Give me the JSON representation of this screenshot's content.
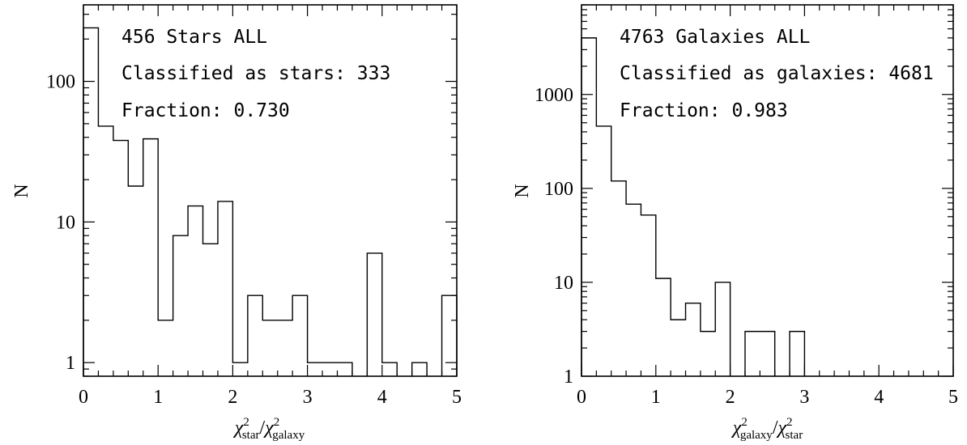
{
  "chart_data": [
    {
      "type": "histogram",
      "scale_y": "log",
      "xlim": [
        0,
        5
      ],
      "ylim": [
        0.8,
        350
      ],
      "x_ticks": [
        "0",
        "1",
        "2",
        "3",
        "4",
        "5"
      ],
      "y_ticks": [
        "1",
        "10",
        "100"
      ],
      "ylabel": "N",
      "xlabel": {
        "num_sym": "χ",
        "num_sub": "star",
        "den_sym": "χ",
        "den_sub": "galaxy",
        "sup": "2"
      },
      "annotations": [
        "456 Stars ALL",
        "Classified as stars: 333",
        "Fraction: 0.730"
      ],
      "bin_width": 0.2,
      "x": [
        0.0,
        0.2,
        0.4,
        0.6,
        0.8,
        1.0,
        1.2,
        1.4,
        1.6,
        1.8,
        2.0,
        2.2,
        2.4,
        2.6,
        2.8,
        3.0,
        3.2,
        3.4,
        3.6,
        3.8,
        4.0,
        4.2,
        4.4,
        4.6,
        4.8
      ],
      "values": [
        240,
        48,
        38,
        18,
        39,
        2,
        8,
        13,
        7,
        14,
        1,
        3,
        2,
        2,
        3,
        1,
        1,
        1,
        0,
        6,
        1,
        0,
        1,
        0,
        3
      ]
    },
    {
      "type": "histogram",
      "scale_y": "log",
      "xlim": [
        0,
        5
      ],
      "ylim": [
        1,
        9000
      ],
      "x_ticks": [
        "0",
        "1",
        "2",
        "3",
        "4",
        "5"
      ],
      "y_ticks": [
        "1",
        "10",
        "100",
        "1000"
      ],
      "ylabel": "N",
      "xlabel": {
        "num_sym": "χ",
        "num_sub": "galaxy",
        "den_sym": "χ",
        "den_sub": "star",
        "sup": "2"
      },
      "annotations": [
        "4763 Galaxies ALL",
        "Classified as galaxies: 4681",
        "Fraction: 0.983"
      ],
      "bin_width": 0.2,
      "x": [
        0.0,
        0.2,
        0.4,
        0.6,
        0.8,
        1.0,
        1.2,
        1.4,
        1.6,
        1.8,
        2.0,
        2.2,
        2.4,
        2.6,
        2.8,
        3.0,
        3.2,
        3.4,
        3.6,
        3.8,
        4.0,
        4.2,
        4.4,
        4.6,
        4.8
      ],
      "values": [
        4000,
        460,
        120,
        68,
        52,
        11,
        4,
        6,
        3,
        10,
        0,
        3,
        3,
        0,
        3,
        0,
        0,
        0,
        0,
        0,
        0,
        0,
        0,
        0,
        0
      ]
    }
  ]
}
